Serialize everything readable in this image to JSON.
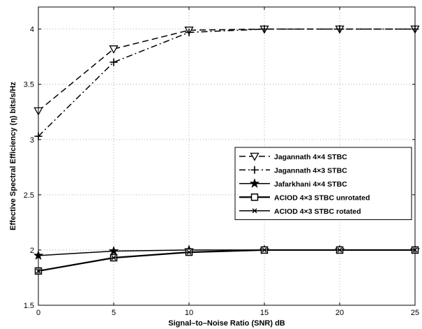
{
  "chart_data": {
    "type": "line",
    "xlabel": "Signal–to–Noise Ratio (SNR) dB",
    "ylabel": "Effective Spectral Efficiency (η) bits/s/Hz",
    "xlim": [
      0,
      25
    ],
    "ylim": [
      1.5,
      4.2
    ],
    "x_ticks": [
      0,
      5,
      10,
      15,
      20,
      25
    ],
    "y_ticks": [
      1.5,
      2,
      2.5,
      3,
      3.5,
      4
    ],
    "x_tick_labels": [
      "0",
      "5",
      "10",
      "15",
      "20",
      "25"
    ],
    "y_tick_labels": [
      "1.5",
      "2",
      "2.5",
      "3",
      "3.5",
      "4"
    ],
    "grid": true,
    "legend_position": "right, middle",
    "x": [
      0,
      5,
      10,
      15,
      20,
      25
    ],
    "series": [
      {
        "name": "Jagannath 4×4 STBC",
        "values": [
          3.26,
          3.82,
          3.99,
          4.0,
          4.0,
          4.0
        ],
        "line": "dashed",
        "marker": "triangle-down"
      },
      {
        "name": "Jagannath 4×3 STBC",
        "values": [
          3.03,
          3.7,
          3.97,
          4.0,
          4.0,
          4.0
        ],
        "line": "dashdot",
        "marker": "plus"
      },
      {
        "name": "Jafarkhani 4×4 STBC",
        "values": [
          1.95,
          1.99,
          2.0,
          2.0,
          2.0,
          2.0
        ],
        "line": "solid",
        "marker": "star"
      },
      {
        "name": "ACIOD 4×3 STBC unrotated",
        "values": [
          1.81,
          1.93,
          1.98,
          2.0,
          2.0,
          2.0
        ],
        "line": "solid",
        "marker": "square"
      },
      {
        "name": "ACIOD 4×3 STBC rotated",
        "values": [
          1.81,
          1.93,
          1.98,
          2.0,
          2.0,
          2.0
        ],
        "line": "solid",
        "marker": "x"
      }
    ],
    "colors": {
      "line": "#000000",
      "grid": "#9a9a9a",
      "background": "#ffffff"
    }
  }
}
